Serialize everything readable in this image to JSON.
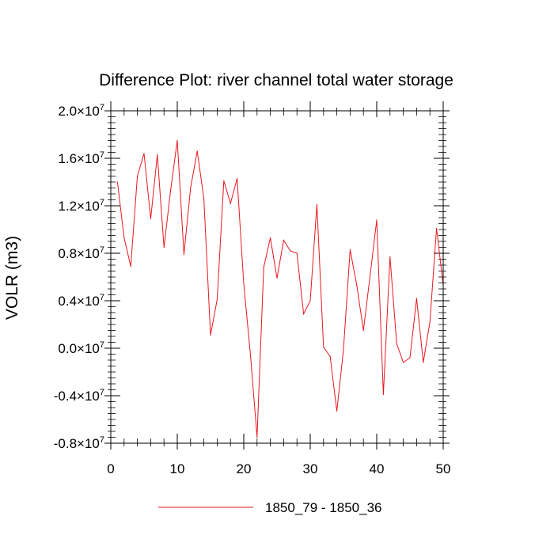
{
  "chart_data": {
    "type": "line",
    "title": "Difference Plot: river channel total water storage",
    "xlabel": "",
    "ylabel": "VOLR  (m3)",
    "xlim": [
      0,
      50
    ],
    "ylim": [
      -0.8,
      2.0
    ],
    "y_scale_label": "10",
    "y_scale_exponent": "7",
    "x_ticks": [
      0,
      10,
      20,
      30,
      40,
      50
    ],
    "x_tick_labels": [
      "0",
      "10",
      "20",
      "30",
      "40",
      "50"
    ],
    "y_ticks": [
      -0.8,
      -0.4,
      0.0,
      0.4,
      0.8,
      1.2,
      1.6,
      2.0
    ],
    "y_tick_labels": [
      "-0.8",
      "-0.4",
      "0.0",
      "0.4",
      "0.8",
      "1.2",
      "1.6",
      "2.0"
    ],
    "legend_position": "bottom-center",
    "grid": false,
    "series": [
      {
        "name": "1850_79 - 1850_36",
        "color": "#e8171c",
        "x": [
          1,
          2,
          3,
          4,
          5,
          6,
          7,
          8,
          9,
          10,
          11,
          12,
          13,
          14,
          15,
          16,
          17,
          18,
          19,
          20,
          21,
          22,
          23,
          24,
          25,
          26,
          27,
          28,
          29,
          30,
          31,
          32,
          33,
          34,
          35,
          36,
          37,
          38,
          39,
          40,
          41,
          42,
          43,
          44,
          45,
          46,
          47,
          48,
          49,
          50
        ],
        "values": [
          1.4,
          0.93,
          0.69,
          1.45,
          1.64,
          1.09,
          1.63,
          0.85,
          1.33,
          1.75,
          0.79,
          1.35,
          1.66,
          1.26,
          0.11,
          0.41,
          1.41,
          1.22,
          1.43,
          0.54,
          -0.05,
          -0.75,
          0.68,
          0.93,
          0.59,
          0.91,
          0.82,
          0.8,
          0.29,
          0.4,
          1.21,
          0.01,
          -0.07,
          -0.53,
          -0.01,
          0.83,
          0.53,
          0.15,
          0.61,
          1.08,
          -0.39,
          0.77,
          0.04,
          -0.12,
          -0.08,
          0.42,
          -0.12,
          0.22,
          1.01,
          0.53
        ]
      }
    ]
  }
}
